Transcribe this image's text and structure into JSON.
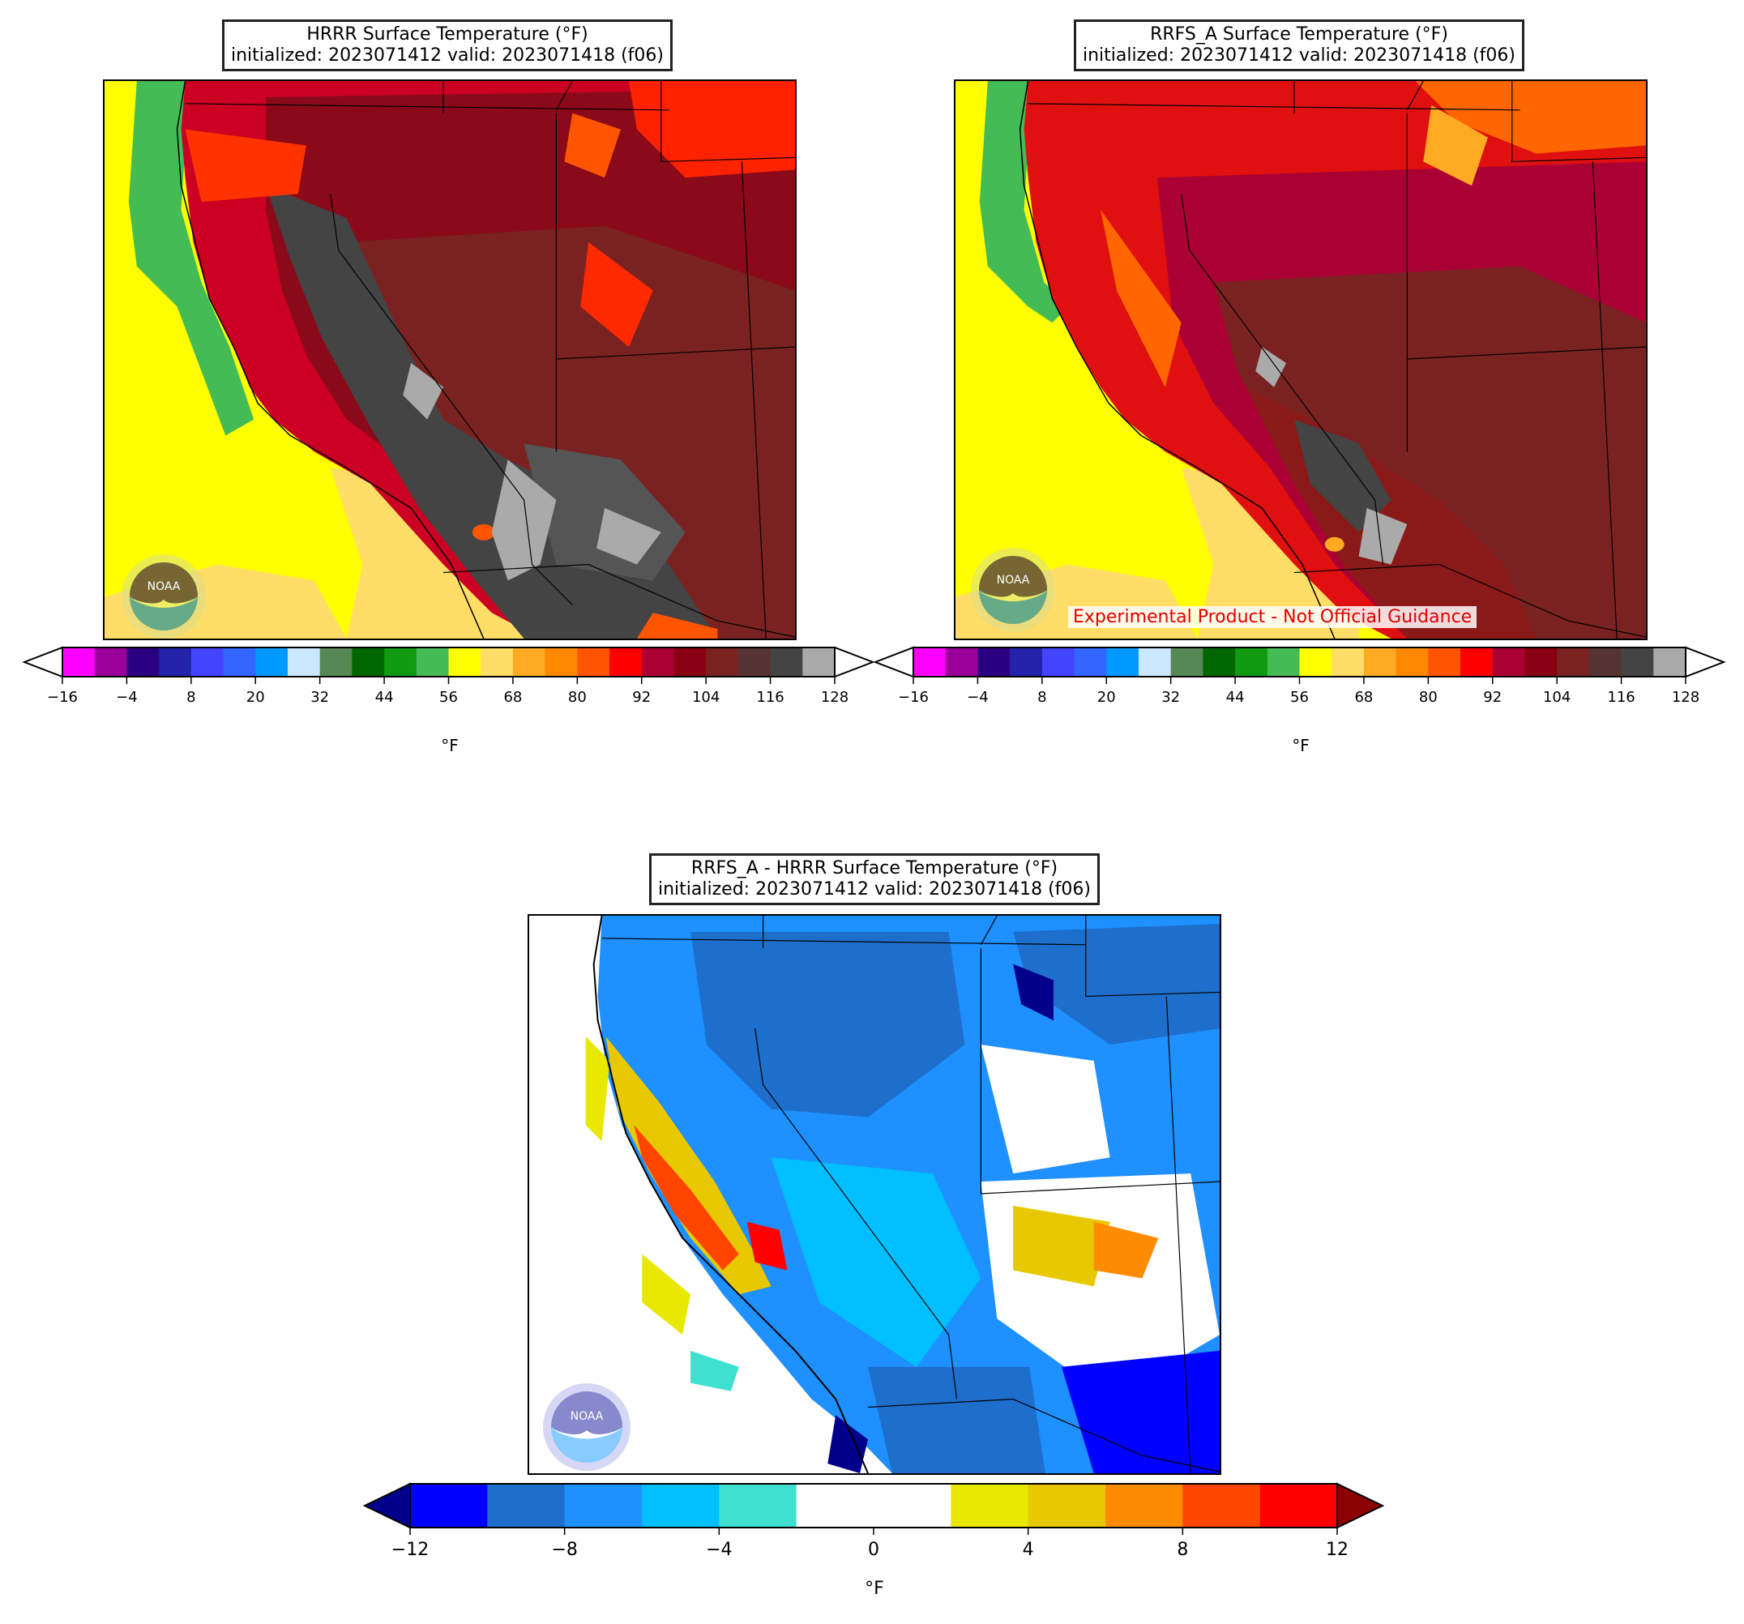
{
  "panels": {
    "hrrr": {
      "title_line1": "HRRR Surface Temperature (°F)",
      "title_line2": "initialized: 2023071412 valid: 2023071418 (f06)"
    },
    "rrfs": {
      "title_line1": "RRFS_A Surface Temperature (°F)",
      "title_line2": "initialized: 2023071412 valid: 2023071418 (f06)",
      "disclaimer": "Experimental Product - Not Official Guidance"
    },
    "diff": {
      "title_line1": "RRFS_A - HRRR Surface Temperature (°F)",
      "title_line2": "initialized: 2023071412 valid: 2023071418 (f06)"
    }
  },
  "temp_colorbar": {
    "unit": "°F",
    "ticks": [
      "−16",
      "−4",
      "8",
      "20",
      "32",
      "44",
      "56",
      "68",
      "80",
      "92",
      "104",
      "116",
      "128"
    ],
    "levels": [
      -16,
      128
    ],
    "level_step": 6,
    "colors": [
      "#ff00ff",
      "#990099",
      "#2b0080",
      "#2222aa",
      "#4444ff",
      "#3366ff",
      "#0099ff",
      "#cce6ff",
      "#558855",
      "#006600",
      "#119911",
      "#44bb55",
      "#ffff00",
      "#ffdd66",
      "#ffaa22",
      "#ff8800",
      "#ff5500",
      "#ff0000",
      "#aa0033",
      "#880011",
      "#7a2222",
      "#553333",
      "#444444",
      "#aaaaaa"
    ],
    "under_color": "#ffffff",
    "over_color": "#ffffff"
  },
  "diff_colorbar": {
    "unit": "°F",
    "ticks": [
      "−12",
      "−8",
      "−4",
      "0",
      "4",
      "8",
      "12"
    ],
    "levels": [
      -12,
      12
    ],
    "level_step": 2,
    "colors": [
      "#0000ff",
      "#1e6ecc",
      "#1e90ff",
      "#00bfff",
      "#40e0d0",
      "#ffffff",
      "#ffffff",
      "#e8e800",
      "#e8c800",
      "#ff8c00",
      "#ff4500",
      "#ff0000"
    ],
    "under_color": "#00008b",
    "over_color": "#8b0000"
  },
  "logo": {
    "text": "NOAA",
    "icon": "noaa-logo-icon"
  }
}
